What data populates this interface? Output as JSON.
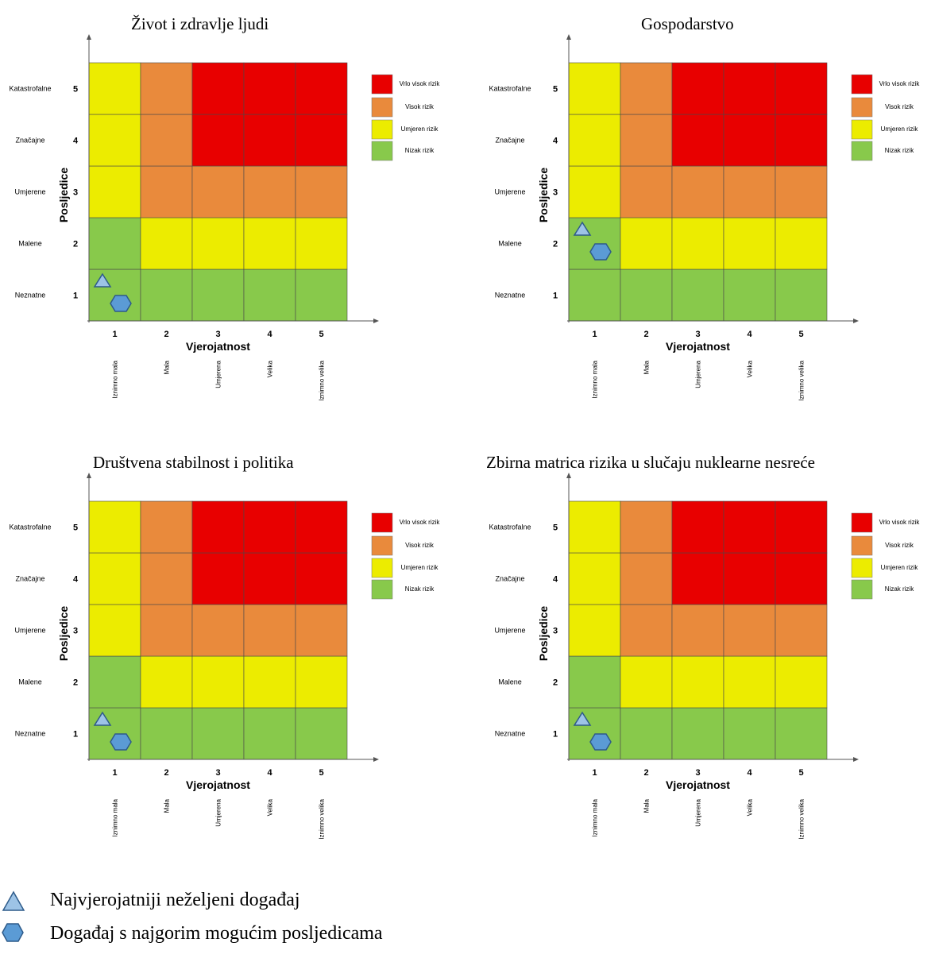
{
  "chart_data": [
    {
      "type": "heatmap",
      "title": "Život i zdravlje ljudi",
      "xlabel": "Vjerojatnost",
      "ylabel": "Posljedice",
      "x_ticks": [
        "1",
        "2",
        "3",
        "4",
        "5"
      ],
      "x_categories": [
        "Iznimno mala",
        "Mala",
        "Umjerena",
        "Velika",
        "Iznimno velika"
      ],
      "y_ticks": [
        "1",
        "2",
        "3",
        "4",
        "5"
      ],
      "y_categories": [
        "Neznatne",
        "Malene",
        "Umjerene",
        "Značajne",
        "Katastrofalne"
      ],
      "risk_levels_bottom_to_top": [
        [
          "low",
          "low",
          "low",
          "low",
          "low"
        ],
        [
          "low",
          "moderate",
          "moderate",
          "moderate",
          "moderate"
        ],
        [
          "moderate",
          "high",
          "high",
          "high",
          "high"
        ],
        [
          "moderate",
          "high",
          "very_high",
          "very_high",
          "very_high"
        ],
        [
          "moderate",
          "high",
          "very_high",
          "very_high",
          "very_high"
        ]
      ],
      "markers": [
        {
          "shape": "triangle",
          "probability": 1,
          "consequence": 1
        },
        {
          "shape": "hexagon",
          "probability": 1,
          "consequence": 1
        }
      ],
      "legend": [
        "Vrlo visok rizik",
        "Visok rizik",
        "Umjeren rizik",
        "Nizak rizik"
      ]
    },
    {
      "type": "heatmap",
      "title": "Gospodarstvo",
      "xlabel": "Vjerojatnost",
      "ylabel": "Posljedice",
      "x_ticks": [
        "1",
        "2",
        "3",
        "4",
        "5"
      ],
      "x_categories": [
        "Iznimno mala",
        "Mala",
        "Umjerena",
        "Velika",
        "Iznimno velika"
      ],
      "y_ticks": [
        "1",
        "2",
        "3",
        "4",
        "5"
      ],
      "y_categories": [
        "Neznatne",
        "Malene",
        "Umjerene",
        "Značajne",
        "Katastrofalne"
      ],
      "risk_levels_bottom_to_top": [
        [
          "low",
          "low",
          "low",
          "low",
          "low"
        ],
        [
          "low",
          "moderate",
          "moderate",
          "moderate",
          "moderate"
        ],
        [
          "moderate",
          "high",
          "high",
          "high",
          "high"
        ],
        [
          "moderate",
          "high",
          "very_high",
          "very_high",
          "very_high"
        ],
        [
          "moderate",
          "high",
          "very_high",
          "very_high",
          "very_high"
        ]
      ],
      "markers": [
        {
          "shape": "triangle",
          "probability": 1,
          "consequence": 2
        },
        {
          "shape": "hexagon",
          "probability": 1,
          "consequence": 2
        }
      ],
      "legend": [
        "Vrlo visok rizik",
        "Visok rizik",
        "Umjeren rizik",
        "Nizak rizik"
      ]
    },
    {
      "type": "heatmap",
      "title": "Društvena stabilnost i politika",
      "xlabel": "Vjerojatnost",
      "ylabel": "Posljedice",
      "x_ticks": [
        "1",
        "2",
        "3",
        "4",
        "5"
      ],
      "x_categories": [
        "Iznimno mala",
        "Mala",
        "Umjerena",
        "Velika",
        "Iznimno velika"
      ],
      "y_ticks": [
        "1",
        "2",
        "3",
        "4",
        "5"
      ],
      "y_categories": [
        "Neznatne",
        "Malene",
        "Umjerene",
        "Značajne",
        "Katastrofalne"
      ],
      "risk_levels_bottom_to_top": [
        [
          "low",
          "low",
          "low",
          "low",
          "low"
        ],
        [
          "low",
          "moderate",
          "moderate",
          "moderate",
          "moderate"
        ],
        [
          "moderate",
          "high",
          "high",
          "high",
          "high"
        ],
        [
          "moderate",
          "high",
          "very_high",
          "very_high",
          "very_high"
        ],
        [
          "moderate",
          "high",
          "very_high",
          "very_high",
          "very_high"
        ]
      ],
      "markers": [
        {
          "shape": "triangle",
          "probability": 1,
          "consequence": 1
        },
        {
          "shape": "hexagon",
          "probability": 1,
          "consequence": 1
        }
      ],
      "legend": [
        "Vrlo visok rizik",
        "Visok rizik",
        "Umjeren rizik",
        "Nizak rizik"
      ]
    },
    {
      "type": "heatmap",
      "title": "Zbirna matrica rizika u slučaju nuklearne nesreće",
      "xlabel": "Vjerojatnost",
      "ylabel": "Posljedice",
      "x_ticks": [
        "1",
        "2",
        "3",
        "4",
        "5"
      ],
      "x_categories": [
        "Iznimno mala",
        "Mala",
        "Umjerena",
        "Velika",
        "Iznimno velika"
      ],
      "y_ticks": [
        "1",
        "2",
        "3",
        "4",
        "5"
      ],
      "y_categories": [
        "Neznatne",
        "Malene",
        "Umjerene",
        "Značajne",
        "Katastrofalne"
      ],
      "risk_levels_bottom_to_top": [
        [
          "low",
          "low",
          "low",
          "low",
          "low"
        ],
        [
          "low",
          "moderate",
          "moderate",
          "moderate",
          "moderate"
        ],
        [
          "moderate",
          "high",
          "high",
          "high",
          "high"
        ],
        [
          "moderate",
          "high",
          "very_high",
          "very_high",
          "very_high"
        ],
        [
          "moderate",
          "high",
          "very_high",
          "very_high",
          "very_high"
        ]
      ],
      "markers": [
        {
          "shape": "triangle",
          "probability": 1,
          "consequence": 1
        },
        {
          "shape": "hexagon",
          "probability": 1,
          "consequence": 1
        }
      ],
      "legend": [
        "Vrlo visok rizik",
        "Visok rizik",
        "Umjeren rizik",
        "Nizak rizik"
      ]
    }
  ],
  "risk_colors": {
    "very_high": "#e80000",
    "high": "#e98a3c",
    "moderate": "#ecec00",
    "low": "#88c94b"
  },
  "marker_colors": {
    "triangle_fill": "#9dc3e6",
    "hexagon_fill": "#5b9bd5",
    "stroke": "#2e5b8a"
  },
  "footer_legend": {
    "triangle_label": "Najvjerojatniji neželjeni događaj",
    "hexagon_label": "Događaj s najgorim mogućim posljedicama"
  }
}
